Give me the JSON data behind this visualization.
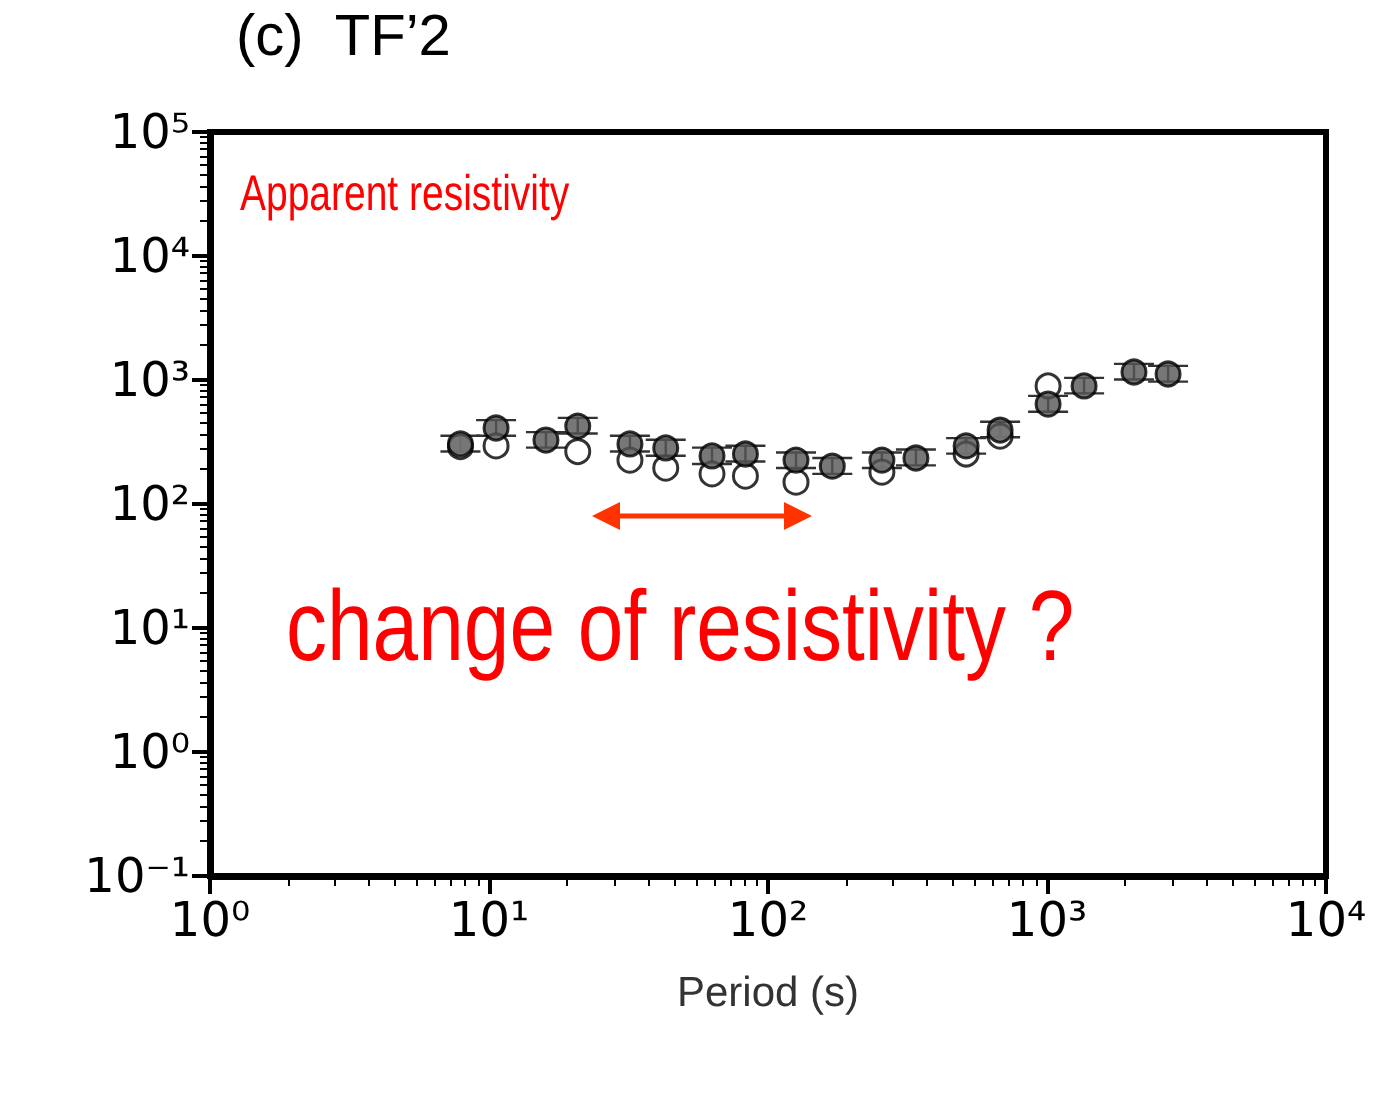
{
  "chart_data": {
    "type": "scatter",
    "title": "(c)  TF’2",
    "xlabel": "Period (s)",
    "log": "xy",
    "xlim": [
      1,
      10000
    ],
    "ylim": [
      0.1,
      100000
    ],
    "xticks": [
      {
        "value": 1,
        "label": "10⁰"
      },
      {
        "value": 10,
        "label": "10¹"
      },
      {
        "value": 100,
        "label": "10²"
      },
      {
        "value": 1000,
        "label": "10³"
      },
      {
        "value": 10000,
        "label": "10⁴"
      }
    ],
    "yticks": [
      {
        "value": 0.1,
        "label": "10⁻¹"
      },
      {
        "value": 1,
        "label": "10⁰"
      },
      {
        "value": 10,
        "label": "10¹"
      },
      {
        "value": 100,
        "label": "10²"
      },
      {
        "value": 1000,
        "label": "10³"
      },
      {
        "value": 10000,
        "label": "10⁴"
      },
      {
        "value": 100000,
        "label": "10⁵"
      }
    ],
    "x": [
      7.9,
      10.6,
      16,
      20.8,
      32,
      43,
      63,
      83,
      126,
      170,
      256,
      339,
      513,
      679,
      1009,
      1358,
      2050,
      2716
    ],
    "series": [
      {
        "color": "#ffffff",
        "marker": "circle",
        "values": [
          290,
          294,
          null,
          265,
          226,
          195,
          175,
          168,
          150,
          null,
          181,
          null,
          253,
          353,
          895,
          null,
          null,
          null
        ]
      },
      {
        "color": "#555555",
        "marker": "circle",
        "values": [
          305,
          410,
          328,
          425,
          305,
          283,
          244,
          253,
          226,
          202,
          226,
          235,
          294,
          395,
          640,
          895,
          1160,
          1118
        ],
        "errors": [
          [
            265,
            355
          ],
          [
            355,
            475
          ],
          [
            285,
            380
          ],
          [
            370,
            495
          ],
          [
            265,
            355
          ],
          [
            245,
            330
          ],
          [
            210,
            285
          ],
          [
            220,
            295
          ],
          [
            195,
            260
          ],
          [
            175,
            235
          ],
          [
            195,
            260
          ],
          [
            205,
            275
          ],
          [
            255,
            340
          ],
          [
            345,
            460
          ],
          [
            555,
            745
          ],
          [
            780,
            1040
          ],
          [
            1010,
            1350
          ],
          [
            970,
            1300
          ]
        ]
      }
    ],
    "annotations": [
      "Apparent resistivity",
      "change of resistivity ?"
    ],
    "grid": false
  }
}
